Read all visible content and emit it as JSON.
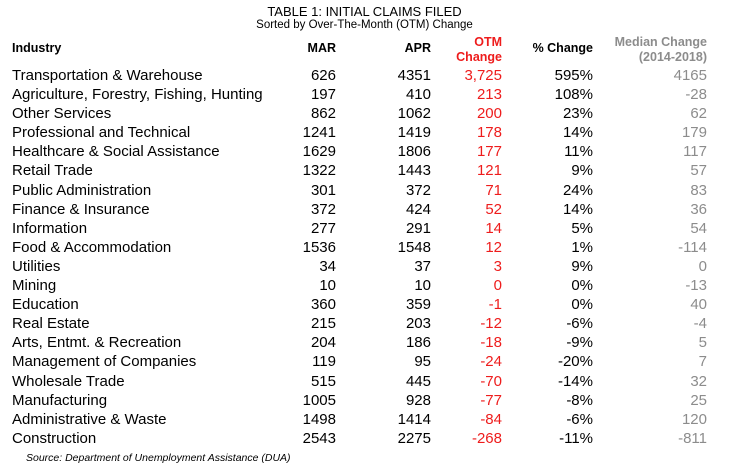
{
  "title": "TABLE 1: INITIAL CLAIMS FILED",
  "subtitle": "Sorted by Over-The-Month (OTM) Change",
  "columns": {
    "industry": "Industry",
    "mar": "MAR",
    "apr": "APR",
    "otm_line1": "OTM",
    "otm_line2": "Change",
    "pct": "% Change",
    "median_line1": "Median Change",
    "median_line2": "(2014-2018)"
  },
  "colors": {
    "otm": "#ee1c1c",
    "median": "#8c8c8c"
  },
  "rows": [
    {
      "industry": "Transportation & Warehouse",
      "mar": "626",
      "apr": "4351",
      "otm": "3,725",
      "pct": "595%",
      "median": "4165"
    },
    {
      "industry": "Agriculture, Forestry, Fishing, Hunting",
      "mar": "197",
      "apr": "410",
      "otm": "213",
      "pct": "108%",
      "median": "-28"
    },
    {
      "industry": "Other Services",
      "mar": "862",
      "apr": "1062",
      "otm": "200",
      "pct": "23%",
      "median": "62"
    },
    {
      "industry": "Professional and Technical",
      "mar": "1241",
      "apr": "1419",
      "otm": "178",
      "pct": "14%",
      "median": "179"
    },
    {
      "industry": "Healthcare & Social Assistance",
      "mar": "1629",
      "apr": "1806",
      "otm": "177",
      "pct": "11%",
      "median": "117"
    },
    {
      "industry": "Retail Trade",
      "mar": "1322",
      "apr": "1443",
      "otm": "121",
      "pct": "9%",
      "median": "57"
    },
    {
      "industry": "Public Administration",
      "mar": "301",
      "apr": "372",
      "otm": "71",
      "pct": "24%",
      "median": "83"
    },
    {
      "industry": "Finance & Insurance",
      "mar": "372",
      "apr": "424",
      "otm": "52",
      "pct": "14%",
      "median": "36"
    },
    {
      "industry": "Information",
      "mar": "277",
      "apr": "291",
      "otm": "14",
      "pct": "5%",
      "median": "54"
    },
    {
      "industry": "Food & Accommodation",
      "mar": "1536",
      "apr": "1548",
      "otm": "12",
      "pct": "1%",
      "median": "-114"
    },
    {
      "industry": "Utilities",
      "mar": "34",
      "apr": "37",
      "otm": "3",
      "pct": "9%",
      "median": "0"
    },
    {
      "industry": "Mining",
      "mar": "10",
      "apr": "10",
      "otm": "0",
      "pct": "0%",
      "median": "-13"
    },
    {
      "industry": "Education",
      "mar": "360",
      "apr": "359",
      "otm": "-1",
      "pct": "0%",
      "median": "40"
    },
    {
      "industry": "Real Estate",
      "mar": "215",
      "apr": "203",
      "otm": "-12",
      "pct": "-6%",
      "median": "-4"
    },
    {
      "industry": "Arts, Entmt. & Recreation",
      "mar": "204",
      "apr": "186",
      "otm": "-18",
      "pct": "-9%",
      "median": "5"
    },
    {
      "industry": "Management of Companies",
      "mar": "119",
      "apr": "95",
      "otm": "-24",
      "pct": "-20%",
      "median": "7"
    },
    {
      "industry": "Wholesale Trade",
      "mar": "515",
      "apr": "445",
      "otm": "-70",
      "pct": "-14%",
      "median": "32"
    },
    {
      "industry": "Manufacturing",
      "mar": "1005",
      "apr": "928",
      "otm": "-77",
      "pct": "-8%",
      "median": "25"
    },
    {
      "industry": "Administrative & Waste",
      "mar": "1498",
      "apr": "1414",
      "otm": "-84",
      "pct": "-6%",
      "median": "120"
    },
    {
      "industry": "Construction",
      "mar": "2543",
      "apr": "2275",
      "otm": "-268",
      "pct": "-11%",
      "median": "-811"
    }
  ],
  "source": "Source: Department of Unemployment Assistance (DUA)"
}
